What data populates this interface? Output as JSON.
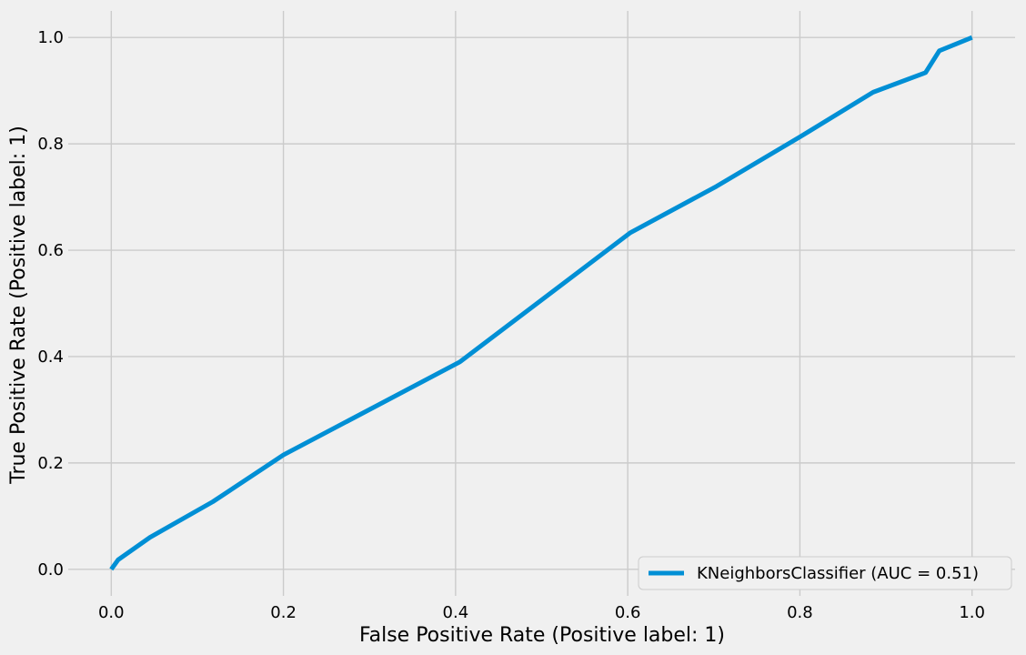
{
  "chart_data": {
    "type": "line",
    "title": "",
    "xlabel": "False Positive Rate (Positive label: 1)",
    "ylabel": "True Positive Rate (Positive label: 1)",
    "xlim": [
      -0.05,
      1.05
    ],
    "ylim": [
      -0.05,
      1.05
    ],
    "x_ticks": [
      0.0,
      0.2,
      0.4,
      0.6,
      0.8,
      1.0
    ],
    "y_ticks": [
      0.0,
      0.2,
      0.4,
      0.6,
      0.8,
      1.0
    ],
    "x_tick_labels": [
      "0.0",
      "0.2",
      "0.4",
      "0.6",
      "0.8",
      "1.0"
    ],
    "y_tick_labels": [
      "0.0",
      "0.2",
      "0.4",
      "0.6",
      "0.8",
      "1.0"
    ],
    "grid": true,
    "legend_position": "lower-right",
    "background_color": "#f0f0f0",
    "grid_color": "#cbcbcb",
    "series": [
      {
        "name": "KNeighborsClassifier (AUC = 0.51)",
        "color": "#008fd5",
        "x": [
          0.0,
          0.008,
          0.045,
          0.118,
          0.2,
          0.405,
          0.603,
          0.703,
          0.8,
          0.885,
          0.946,
          0.962,
          1.0
        ],
        "y": [
          0.0,
          0.018,
          0.06,
          0.127,
          0.215,
          0.39,
          0.633,
          0.72,
          0.813,
          0.897,
          0.934,
          0.975,
          1.0
        ]
      }
    ]
  }
}
